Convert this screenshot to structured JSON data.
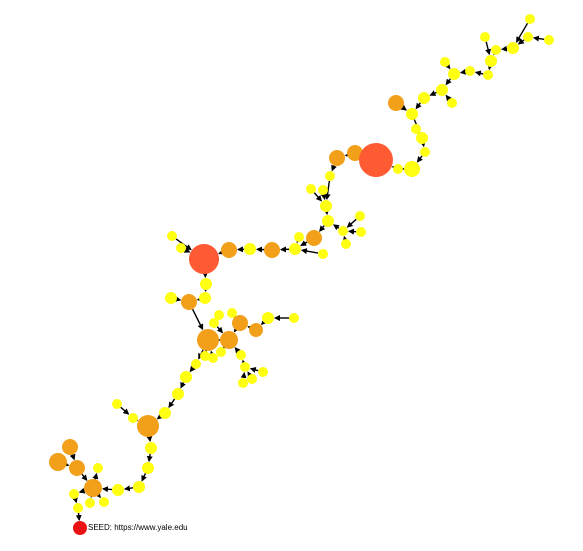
{
  "seed_label": "SEED: https://www.yale.edu",
  "colors": {
    "seed": "#ee1111",
    "hub": "#ff5a33",
    "mid": "#f2a019",
    "leaf": "#ffff11",
    "edge": "#000000"
  }
}
